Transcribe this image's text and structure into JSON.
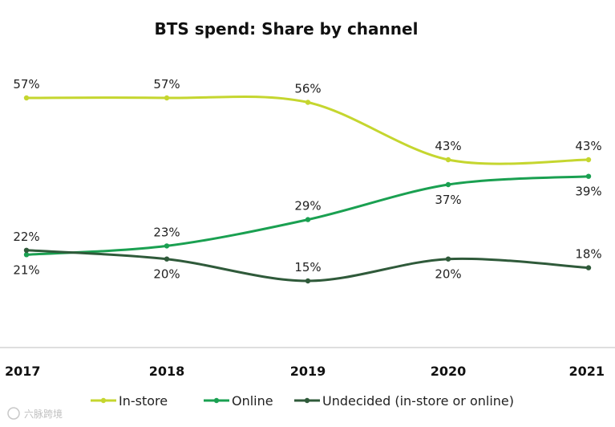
{
  "chart_data": {
    "type": "line",
    "title": "BTS spend: Share by channel",
    "categories": [
      "2017",
      "2018",
      "2019",
      "2020",
      "2021"
    ],
    "xlabel": "",
    "ylabel": "",
    "ylim": [
      0,
      70
    ],
    "grid": false,
    "legend_position": "bottom",
    "series": [
      {
        "name": "In-store",
        "color": "#c5d62f",
        "values": [
          57,
          57,
          56,
          43,
          43
        ],
        "labels": [
          "57%",
          "57%",
          "56%",
          "43%",
          "43%"
        ]
      },
      {
        "name": "Online",
        "color": "#1aa051",
        "values": [
          21,
          23,
          29,
          37,
          39
        ],
        "labels": [
          "21%",
          "23%",
          "29%",
          "37%",
          "39%"
        ]
      },
      {
        "name": "Undecided (in-store or online)",
        "color": "#2f5a3a",
        "values": [
          22,
          20,
          15,
          20,
          18
        ],
        "labels": [
          "22%",
          "20%",
          "15%",
          "20%",
          "18%"
        ]
      }
    ]
  },
  "watermark": "六脉跨境"
}
